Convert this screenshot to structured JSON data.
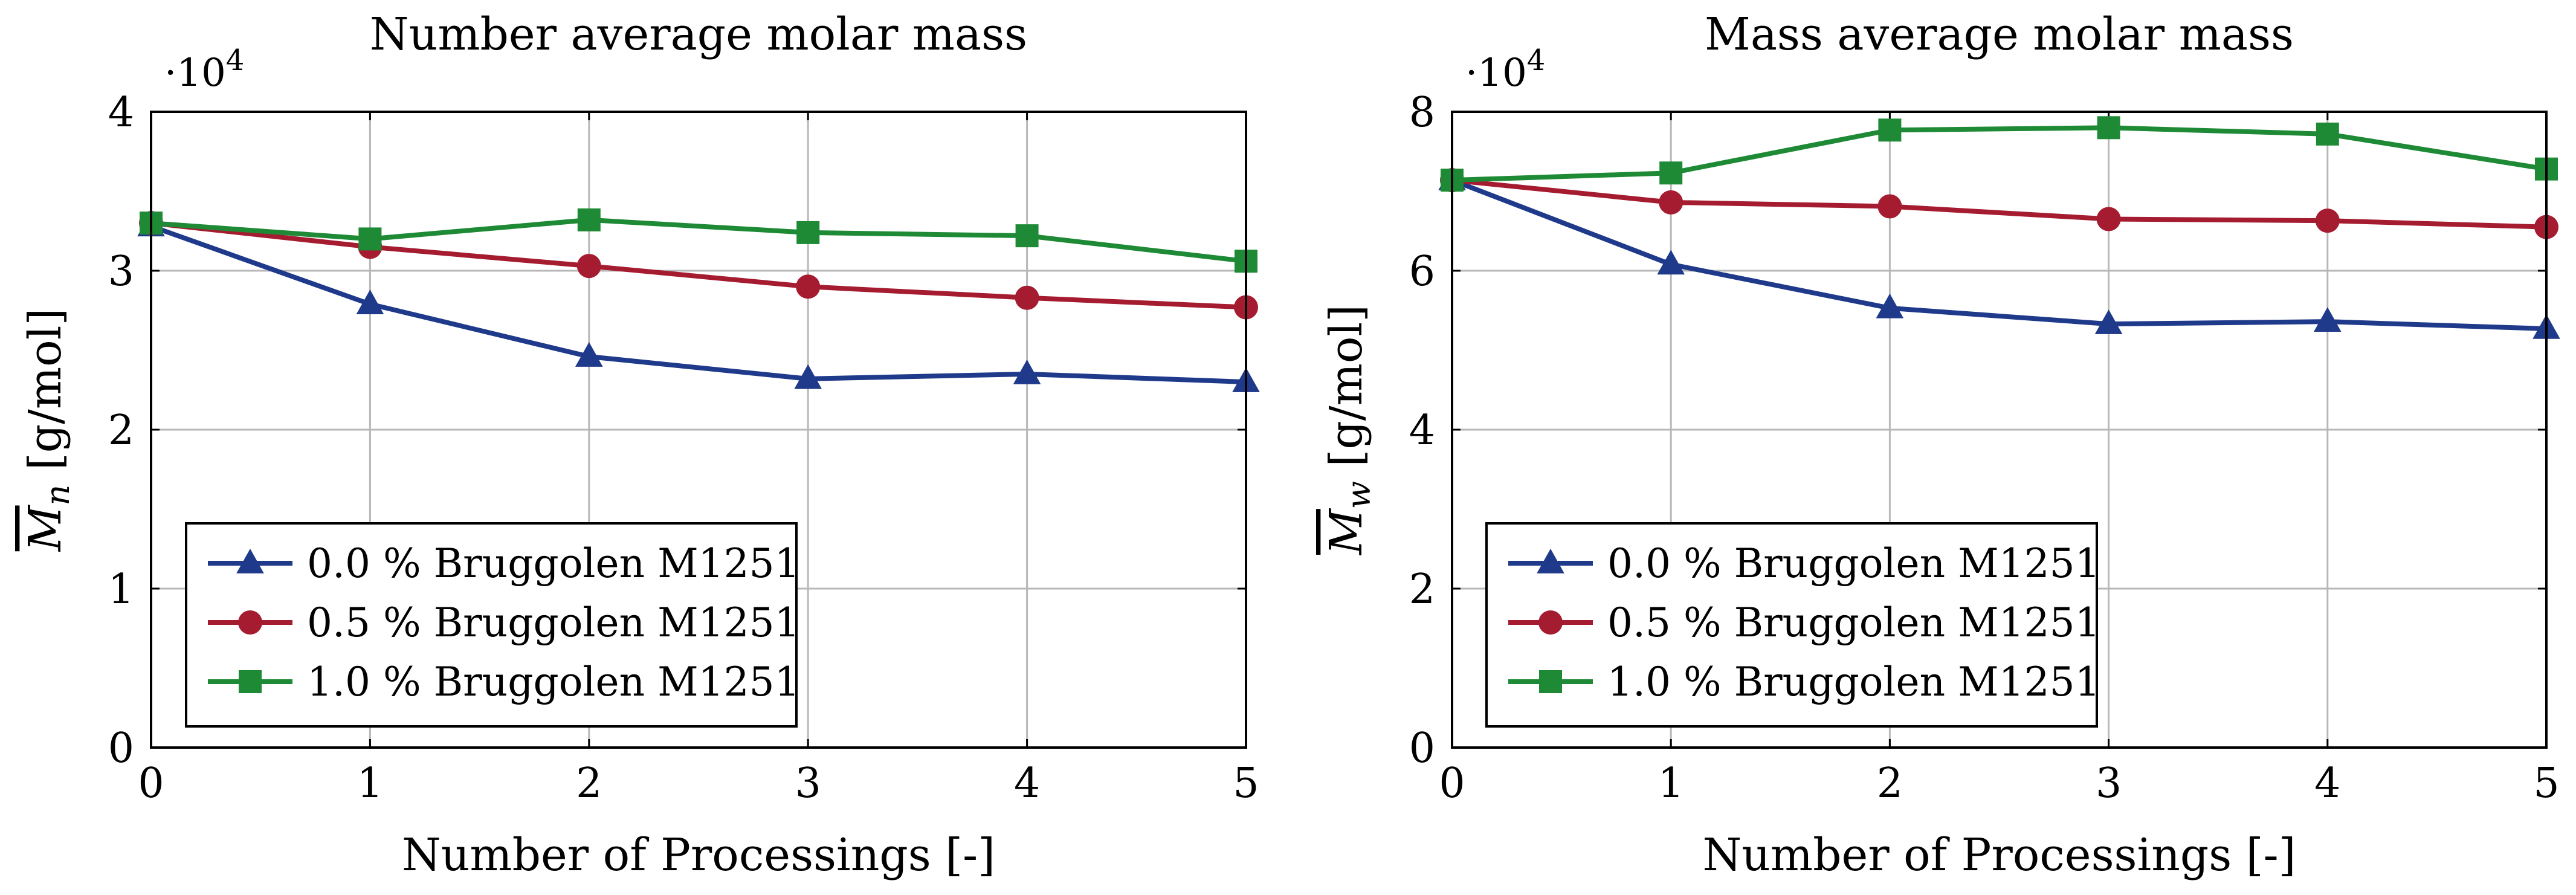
{
  "chart_data": [
    {
      "type": "line",
      "title": "Number average molar mass",
      "xlabel": "Number of Processings [-]",
      "ylabel": "M̄n [g/mol]",
      "ylabel_main": "M",
      "ylabel_sub": "n",
      "ylabel_unit": " [g/mol]",
      "exponent_label": "·10",
      "exponent_power": "4",
      "x": [
        0,
        1,
        2,
        3,
        4,
        5
      ],
      "xlim": [
        0,
        5
      ],
      "ylim": [
        0,
        4
      ],
      "xticks": [
        0,
        1,
        2,
        3,
        4,
        5
      ],
      "yticks": [
        0,
        1,
        2,
        3,
        4
      ],
      "grid": true,
      "legend_position": "bottom-left",
      "series": [
        {
          "name": "0.0 % Bruggolen M1251",
          "marker": "triangle",
          "color": "#1f3a8a",
          "values": [
            3.28,
            2.79,
            2.46,
            2.32,
            2.35,
            2.3
          ]
        },
        {
          "name": "0.5 % Bruggolen M1251",
          "marker": "circle",
          "color": "#a51c30",
          "values": [
            3.3,
            3.15,
            3.03,
            2.9,
            2.83,
            2.77
          ]
        },
        {
          "name": "1.0 % Bruggolen M1251",
          "marker": "square",
          "color": "#1e8a35",
          "values": [
            3.3,
            3.2,
            3.32,
            3.24,
            3.22,
            3.06
          ]
        }
      ]
    },
    {
      "type": "line",
      "title": "Mass average molar mass",
      "xlabel": "Number of Processings [-]",
      "ylabel": "M̄w [g/mol]",
      "ylabel_main": "M",
      "ylabel_sub": "w",
      "ylabel_unit": " [g/mol]",
      "exponent_label": "·10",
      "exponent_power": "4",
      "x": [
        0,
        1,
        2,
        3,
        4,
        5
      ],
      "xlim": [
        0,
        5
      ],
      "ylim": [
        0,
        8
      ],
      "xticks": [
        0,
        1,
        2,
        3,
        4,
        5
      ],
      "yticks": [
        0,
        2,
        4,
        6,
        8
      ],
      "grid": true,
      "legend_position": "bottom-left",
      "series": [
        {
          "name": "0.0 % Bruggolen M1251",
          "marker": "triangle",
          "color": "#1f3a8a",
          "values": [
            7.14,
            6.08,
            5.53,
            5.33,
            5.36,
            5.27
          ]
        },
        {
          "name": "0.5 % Bruggolen M1251",
          "marker": "circle",
          "color": "#a51c30",
          "values": [
            7.14,
            6.86,
            6.81,
            6.65,
            6.63,
            6.55
          ]
        },
        {
          "name": "1.0 % Bruggolen M1251",
          "marker": "square",
          "color": "#1e8a35",
          "values": [
            7.14,
            7.23,
            7.77,
            7.8,
            7.72,
            7.28
          ]
        }
      ]
    }
  ]
}
